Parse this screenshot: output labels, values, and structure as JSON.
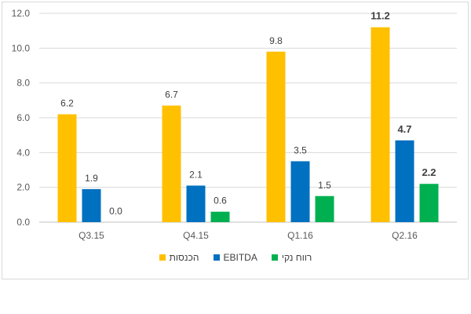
{
  "chart_data": {
    "type": "bar",
    "categories": [
      "Q3.15",
      "Q4.15",
      "Q1.16",
      "Q2.16"
    ],
    "series": [
      {
        "name": "הכנסות",
        "color": "#FFC000",
        "values": [
          6.2,
          6.7,
          9.8,
          11.2
        ],
        "labels": [
          "6.2",
          "6.7",
          "9.8",
          "11.2"
        ]
      },
      {
        "name": "EBITDA",
        "color": "#0070C0",
        "values": [
          1.9,
          2.1,
          3.5,
          4.7
        ],
        "labels": [
          "1.9",
          "2.1",
          "3.5",
          "4.7"
        ]
      },
      {
        "name": "רווח נקי",
        "color": "#00B050",
        "values": [
          0.0,
          0.6,
          1.5,
          2.2
        ],
        "labels": [
          "0.0",
          "0.6",
          "1.5",
          "2.2"
        ]
      }
    ],
    "yticks": [
      "0.0",
      "2.0",
      "4.0",
      "6.0",
      "8.0",
      "10.0",
      "12.0"
    ],
    "ylim": [
      0,
      12
    ],
    "grid": true,
    "legend_position": "bottom",
    "bold_category": "Q2.16"
  }
}
